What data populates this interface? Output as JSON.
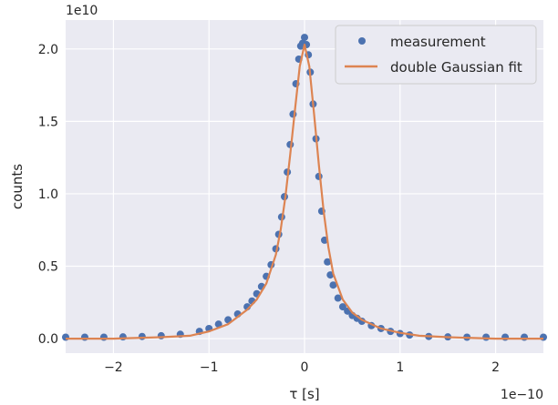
{
  "chart_data": {
    "type": "scatter",
    "title": "",
    "xlabel": "τ [s]",
    "ylabel": "counts",
    "x_offset_text": "1e−10",
    "y_offset_text": "1e10",
    "xlim": [
      -2.5,
      2.5
    ],
    "ylim": [
      -0.1,
      2.2
    ],
    "x_ticks": [
      -2,
      -1,
      0,
      1,
      2
    ],
    "x_tick_labels": [
      "−2",
      "−1",
      "0",
      "1",
      "2"
    ],
    "y_ticks": [
      0.0,
      0.5,
      1.0,
      1.5,
      2.0
    ],
    "y_tick_labels": [
      "0.0",
      "0.5",
      "1.0",
      "1.5",
      "2.0"
    ],
    "grid": true,
    "legend_position": "top-right",
    "colors": {
      "background": "#eaeaf2",
      "grid": "#ffffff",
      "measurement": "#4c72b0",
      "fit": "#dd8452",
      "text": "#262626"
    },
    "series": [
      {
        "name": "measurement",
        "kind": "scatter",
        "x": [
          -2.5,
          -2.3,
          -2.1,
          -1.9,
          -1.7,
          -1.5,
          -1.3,
          -1.1,
          -1.0,
          -0.9,
          -0.8,
          -0.7,
          -0.6,
          -0.55,
          -0.5,
          -0.45,
          -0.4,
          -0.35,
          -0.3,
          -0.27,
          -0.24,
          -0.21,
          -0.18,
          -0.15,
          -0.12,
          -0.09,
          -0.06,
          -0.04,
          -0.02,
          0.0,
          0.02,
          0.04,
          0.06,
          0.09,
          0.12,
          0.15,
          0.18,
          0.21,
          0.24,
          0.27,
          0.3,
          0.35,
          0.4,
          0.45,
          0.5,
          0.55,
          0.6,
          0.7,
          0.8,
          0.9,
          1.0,
          1.1,
          1.3,
          1.5,
          1.7,
          1.9,
          2.1,
          2.3,
          2.5
        ],
        "y": [
          0.01,
          0.01,
          0.01,
          0.012,
          0.015,
          0.02,
          0.03,
          0.05,
          0.07,
          0.1,
          0.13,
          0.17,
          0.22,
          0.26,
          0.31,
          0.36,
          0.43,
          0.51,
          0.62,
          0.72,
          0.84,
          0.98,
          1.15,
          1.34,
          1.55,
          1.76,
          1.93,
          2.02,
          2.04,
          2.08,
          2.03,
          1.96,
          1.84,
          1.62,
          1.38,
          1.12,
          0.88,
          0.68,
          0.53,
          0.44,
          0.37,
          0.28,
          0.22,
          0.19,
          0.16,
          0.14,
          0.12,
          0.09,
          0.07,
          0.05,
          0.035,
          0.025,
          0.015,
          0.012,
          0.01,
          0.01,
          0.01,
          0.01,
          0.01
        ]
      },
      {
        "name": "double Gaussian fit",
        "kind": "line",
        "x": [
          -2.5,
          -2.0,
          -1.5,
          -1.2,
          -1.0,
          -0.8,
          -0.6,
          -0.5,
          -0.4,
          -0.3,
          -0.25,
          -0.2,
          -0.15,
          -0.1,
          -0.05,
          0.0,
          0.05,
          0.1,
          0.15,
          0.2,
          0.25,
          0.3,
          0.4,
          0.5,
          0.6,
          0.8,
          1.0,
          1.2,
          1.5,
          2.0,
          2.5
        ],
        "y": [
          0.0,
          0.0,
          0.01,
          0.02,
          0.05,
          0.1,
          0.2,
          0.27,
          0.38,
          0.58,
          0.75,
          0.98,
          1.27,
          1.58,
          1.88,
          2.03,
          1.88,
          1.55,
          1.2,
          0.88,
          0.63,
          0.45,
          0.27,
          0.18,
          0.13,
          0.07,
          0.04,
          0.02,
          0.01,
          0.0,
          0.0
        ]
      }
    ]
  }
}
